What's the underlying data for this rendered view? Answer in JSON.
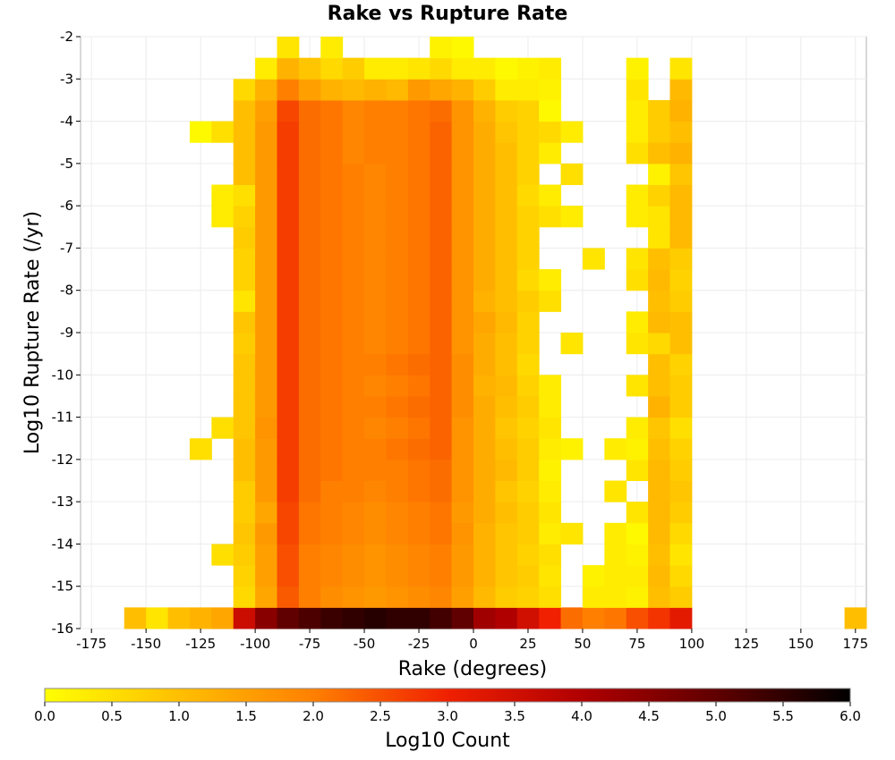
{
  "chart_data": {
    "type": "heatmap",
    "title": "Rake vs Rupture Rate",
    "xlabel": "Rake (degrees)",
    "ylabel": "Log10 Rupture Rate (/yr)",
    "xlim": [
      -180,
      180
    ],
    "ylim": [
      -16,
      -2
    ],
    "x_ticks": [
      -175,
      -150,
      -125,
      -100,
      -75,
      -50,
      -25,
      0,
      25,
      50,
      75,
      100,
      125,
      150,
      175
    ],
    "y_ticks": [
      -2,
      -3,
      -4,
      -5,
      -6,
      -7,
      -8,
      -9,
      -10,
      -11,
      -12,
      -13,
      -14,
      -15,
      -16
    ],
    "grid": true,
    "colorbar": {
      "label": "Log10 Count",
      "min": 0.0,
      "max": 6.0,
      "ticks": [
        "0.0",
        "0.5",
        "1.0",
        "1.5",
        "2.0",
        "2.5",
        "3.0",
        "3.5",
        "4.0",
        "4.5",
        "5.0",
        "5.5",
        "6.0"
      ],
      "colormap": [
        "#ffff00",
        "#ffbf00",
        "#ff8000",
        "#f02000",
        "#b00000",
        "#600000",
        "#000000"
      ]
    },
    "bin_width_x": 10,
    "bin_height_y": 0.5,
    "cells_description": "Each row lists bin-center rake values and Log10 Count values for that bin; rows are keyed by lower edge of rate bin.",
    "rows": [
      {
        "y": -16.0,
        "x": [
          -155,
          -145,
          -135,
          -125,
          -115,
          -105,
          -95,
          -85,
          -75,
          -65,
          -55,
          -45,
          -35,
          -25,
          -15,
          -5,
          5,
          15,
          25,
          35,
          45,
          55,
          65,
          75,
          85,
          95,
          175
        ],
        "v": [
          1.0,
          0.4,
          1.0,
          1.2,
          1.4,
          3.6,
          4.5,
          5.0,
          5.2,
          5.4,
          5.5,
          5.6,
          5.5,
          5.5,
          5.3,
          5.0,
          4.2,
          4.0,
          3.5,
          3.0,
          2.2,
          2.0,
          2.1,
          2.5,
          2.8,
          3.2,
          1.0
        ]
      },
      {
        "y": -15.5,
        "x": [
          -105,
          -95,
          -85,
          -75,
          -65,
          -55,
          -45,
          -35,
          -25,
          -15,
          -5,
          5,
          15,
          25,
          35,
          55,
          65,
          75,
          85,
          95
        ],
        "v": [
          0.6,
          1.4,
          2.4,
          2.0,
          1.8,
          1.7,
          1.6,
          1.7,
          1.8,
          1.9,
          1.5,
          1.1,
          0.8,
          0.7,
          0.5,
          0.3,
          0.3,
          0.2,
          1.0,
          0.8
        ]
      },
      {
        "y": -15.0,
        "x": [
          -105,
          -95,
          -85,
          -75,
          -65,
          -55,
          -45,
          -35,
          -25,
          -15,
          -5,
          5,
          15,
          25,
          35,
          55,
          65,
          75,
          85,
          95
        ],
        "v": [
          0.7,
          1.5,
          2.5,
          2.0,
          1.9,
          1.8,
          1.7,
          1.8,
          1.9,
          2.0,
          1.6,
          1.2,
          0.9,
          0.8,
          0.4,
          0.2,
          0.3,
          0.3,
          1.1,
          0.6
        ]
      },
      {
        "y": -14.5,
        "x": [
          -115,
          -105,
          -95,
          -85,
          -75,
          -65,
          -55,
          -45,
          -35,
          -25,
          -15,
          -5,
          5,
          15,
          25,
          35,
          65,
          75,
          85,
          95
        ],
        "v": [
          0.5,
          0.8,
          1.5,
          2.5,
          2.0,
          1.9,
          1.8,
          1.7,
          1.8,
          1.9,
          2.0,
          1.6,
          1.2,
          0.9,
          0.7,
          0.5,
          0.3,
          0.2,
          1.0,
          0.4
        ]
      },
      {
        "y": -14.0,
        "x": [
          -105,
          -95,
          -85,
          -75,
          -65,
          -55,
          -45,
          -35,
          -25,
          -15,
          -5,
          5,
          15,
          25,
          35,
          45,
          65,
          75,
          85,
          95
        ],
        "v": [
          0.9,
          1.6,
          2.6,
          2.1,
          2.0,
          1.9,
          1.8,
          1.9,
          2.0,
          2.1,
          1.7,
          1.2,
          0.9,
          0.8,
          0.3,
          0.4,
          0.3,
          0.1,
          1.1,
          0.6
        ]
      },
      {
        "y": -13.5,
        "x": [
          -105,
          -95,
          -85,
          -75,
          -65,
          -55,
          -45,
          -35,
          -25,
          -15,
          -5,
          5,
          15,
          25,
          35,
          75,
          85,
          95
        ],
        "v": [
          0.8,
          1.4,
          2.6,
          2.1,
          2.0,
          1.9,
          1.8,
          1.9,
          2.0,
          2.1,
          1.6,
          1.3,
          1.0,
          0.8,
          0.4,
          0.4,
          1.1,
          0.8
        ]
      },
      {
        "y": -13.0,
        "x": [
          -105,
          -95,
          -85,
          -75,
          -65,
          -55,
          -45,
          -35,
          -25,
          -15,
          -5,
          5,
          15,
          25,
          35,
          65,
          85,
          95
        ],
        "v": [
          0.8,
          1.6,
          2.7,
          2.2,
          2.0,
          2.0,
          1.9,
          2.0,
          2.1,
          2.2,
          1.7,
          1.3,
          0.9,
          0.7,
          0.3,
          0.4,
          1.1,
          0.9
        ]
      },
      {
        "y": -12.5,
        "x": [
          -105,
          -95,
          -85,
          -75,
          -65,
          -55,
          -45,
          -35,
          -25,
          -15,
          -5,
          5,
          15,
          25,
          35,
          75,
          85,
          95
        ],
        "v": [
          1.0,
          1.6,
          2.7,
          2.2,
          2.1,
          2.0,
          2.0,
          2.0,
          2.1,
          2.2,
          1.7,
          1.3,
          1.1,
          0.8,
          0.2,
          0.4,
          1.1,
          0.8
        ]
      },
      {
        "y": -12.0,
        "x": [
          -125,
          -105,
          -95,
          -85,
          -75,
          -65,
          -55,
          -45,
          -35,
          -25,
          -15,
          -5,
          5,
          15,
          25,
          35,
          45,
          65,
          75,
          85,
          95
        ],
        "v": [
          0.5,
          1.0,
          1.6,
          2.7,
          2.2,
          2.1,
          2.0,
          2.0,
          2.1,
          2.2,
          2.3,
          1.7,
          1.3,
          1.0,
          0.8,
          0.3,
          0.2,
          0.3,
          0.2,
          1.0,
          0.7
        ]
      },
      {
        "y": -11.5,
        "x": [
          -115,
          -105,
          -95,
          -85,
          -75,
          -65,
          -55,
          -45,
          -35,
          -25,
          -15,
          -5,
          5,
          15,
          25,
          35,
          75,
          85,
          95
        ],
        "v": [
          0.5,
          0.9,
          1.7,
          2.7,
          2.2,
          2.1,
          2.0,
          1.9,
          2.0,
          2.1,
          2.3,
          1.7,
          1.3,
          0.9,
          0.7,
          0.4,
          0.3,
          0.9,
          0.5
        ]
      },
      {
        "y": -11.0,
        "x": [
          -105,
          -95,
          -85,
          -75,
          -65,
          -55,
          -45,
          -35,
          -25,
          -15,
          -5,
          5,
          15,
          25,
          35,
          85,
          95
        ],
        "v": [
          0.9,
          1.6,
          2.7,
          2.2,
          2.1,
          2.0,
          2.0,
          2.1,
          2.2,
          2.3,
          1.8,
          1.3,
          1.0,
          0.8,
          0.3,
          1.2,
          0.8
        ]
      },
      {
        "y": -10.5,
        "x": [
          -105,
          -95,
          -85,
          -75,
          -65,
          -55,
          -45,
          -35,
          -25,
          -15,
          -5,
          5,
          15,
          25,
          35,
          75,
          85,
          95
        ],
        "v": [
          0.9,
          1.6,
          2.7,
          2.2,
          2.1,
          2.0,
          1.9,
          2.0,
          2.1,
          2.3,
          1.8,
          1.2,
          1.1,
          0.7,
          0.3,
          0.4,
          1.0,
          0.8
        ]
      },
      {
        "y": -10.0,
        "x": [
          -105,
          -95,
          -85,
          -75,
          -65,
          -55,
          -45,
          -35,
          -25,
          -15,
          -5,
          5,
          15,
          25,
          85,
          95
        ],
        "v": [
          0.9,
          1.6,
          2.7,
          2.2,
          2.1,
          2.0,
          2.0,
          2.1,
          2.2,
          2.3,
          1.8,
          1.3,
          1.0,
          0.6,
          1.0,
          0.7
        ]
      },
      {
        "y": -9.5,
        "x": [
          -105,
          -95,
          -85,
          -75,
          -65,
          -55,
          -45,
          -35,
          -25,
          -15,
          -5,
          5,
          15,
          25,
          45,
          75,
          85,
          95
        ],
        "v": [
          0.8,
          1.6,
          2.7,
          2.2,
          2.1,
          2.0,
          1.9,
          2.0,
          2.1,
          2.3,
          1.7,
          1.3,
          1.0,
          0.7,
          0.4,
          0.4,
          0.6,
          1.0
        ]
      },
      {
        "y": -9.0,
        "x": [
          -105,
          -95,
          -85,
          -75,
          -65,
          -55,
          -45,
          -35,
          -25,
          -15,
          -5,
          5,
          15,
          25,
          75,
          85,
          95
        ],
        "v": [
          0.9,
          1.6,
          2.7,
          2.2,
          2.1,
          2.0,
          1.9,
          2.0,
          2.1,
          2.3,
          1.7,
          1.4,
          1.1,
          0.7,
          0.3,
          1.1,
          1.0
        ]
      },
      {
        "y": -8.5,
        "x": [
          -105,
          -95,
          -85,
          -75,
          -65,
          -55,
          -45,
          -35,
          -25,
          -15,
          -5,
          5,
          15,
          25,
          35,
          85,
          95
        ],
        "v": [
          0.4,
          1.6,
          2.7,
          2.2,
          2.1,
          2.0,
          1.9,
          2.0,
          2.1,
          2.3,
          1.7,
          1.2,
          1.0,
          0.8,
          0.5,
          1.0,
          0.8
        ]
      },
      {
        "y": -8.0,
        "x": [
          -105,
          -95,
          -85,
          -75,
          -65,
          -55,
          -45,
          -35,
          -25,
          -15,
          -5,
          5,
          15,
          25,
          35,
          75,
          85,
          95
        ],
        "v": [
          0.7,
          1.6,
          2.7,
          2.2,
          2.1,
          2.0,
          1.9,
          2.0,
          2.1,
          2.3,
          1.7,
          1.3,
          1.0,
          0.6,
          0.3,
          0.5,
          1.1,
          0.7
        ]
      },
      {
        "y": -7.5,
        "x": [
          -105,
          -95,
          -85,
          -75,
          -65,
          -55,
          -45,
          -35,
          -25,
          -15,
          -5,
          5,
          15,
          25,
          55,
          75,
          85,
          95
        ],
        "v": [
          0.7,
          1.6,
          2.7,
          2.2,
          2.1,
          2.0,
          1.9,
          2.0,
          2.1,
          2.3,
          1.7,
          1.3,
          1.0,
          0.7,
          0.4,
          0.4,
          1.0,
          0.8
        ]
      },
      {
        "y": -7.0,
        "x": [
          -105,
          -95,
          -85,
          -75,
          -65,
          -55,
          -45,
          -35,
          -25,
          -15,
          -5,
          5,
          15,
          25,
          85,
          95
        ],
        "v": [
          0.8,
          1.6,
          2.7,
          2.2,
          2.1,
          2.0,
          1.9,
          2.0,
          2.1,
          2.3,
          1.7,
          1.3,
          1.0,
          0.7,
          0.4,
          1.1
        ]
      },
      {
        "y": -6.5,
        "x": [
          -115,
          -105,
          -95,
          -85,
          -75,
          -65,
          -55,
          -45,
          -35,
          -25,
          -15,
          -5,
          5,
          15,
          25,
          35,
          45,
          75,
          85,
          95
        ],
        "v": [
          0.3,
          0.7,
          1.6,
          2.7,
          2.2,
          2.1,
          2.0,
          1.9,
          2.0,
          2.1,
          2.3,
          1.7,
          1.3,
          1.0,
          0.7,
          0.5,
          0.3,
          0.3,
          0.4,
          1.1
        ]
      },
      {
        "y": -6.0,
        "x": [
          -115,
          -105,
          -95,
          -85,
          -75,
          -65,
          -55,
          -45,
          -35,
          -25,
          -15,
          -5,
          5,
          15,
          25,
          35,
          75,
          85,
          95
        ],
        "v": [
          0.3,
          0.5,
          1.6,
          2.7,
          2.2,
          2.1,
          2.0,
          1.9,
          2.0,
          2.1,
          2.3,
          1.7,
          1.3,
          1.0,
          0.6,
          0.3,
          0.3,
          0.7,
          1.1
        ]
      },
      {
        "y": -5.5,
        "x": [
          -105,
          -95,
          -85,
          -75,
          -65,
          -55,
          -45,
          -35,
          -25,
          -15,
          -5,
          5,
          15,
          25,
          45,
          85,
          95
        ],
        "v": [
          1.0,
          1.6,
          2.7,
          2.2,
          2.1,
          2.0,
          1.9,
          2.0,
          2.1,
          2.3,
          1.7,
          1.3,
          1.0,
          0.7,
          0.5,
          0.2,
          0.9
        ]
      },
      {
        "y": -5.0,
        "x": [
          -105,
          -95,
          -85,
          -75,
          -65,
          -55,
          -45,
          -35,
          -25,
          -15,
          -5,
          5,
          15,
          25,
          35,
          75,
          85,
          95
        ],
        "v": [
          1.0,
          1.6,
          2.7,
          2.2,
          2.1,
          1.9,
          2.0,
          2.0,
          2.1,
          2.3,
          1.7,
          1.3,
          1.0,
          0.7,
          0.3,
          0.5,
          1.0,
          1.2
        ]
      },
      {
        "y": -4.5,
        "x": [
          -125,
          -115,
          -105,
          -95,
          -85,
          -75,
          -65,
          -55,
          -45,
          -35,
          -25,
          -15,
          -5,
          5,
          15,
          25,
          35,
          45,
          75,
          85,
          95
        ],
        "v": [
          0.1,
          0.5,
          1.0,
          1.6,
          2.7,
          2.2,
          2.1,
          1.9,
          2.0,
          2.0,
          2.1,
          2.3,
          1.7,
          1.3,
          0.9,
          0.7,
          0.6,
          0.3,
          0.3,
          0.8,
          1.0
        ]
      },
      {
        "y": -4.0,
        "x": [
          -105,
          -95,
          -85,
          -75,
          -65,
          -55,
          -45,
          -35,
          -25,
          -15,
          -5,
          5,
          15,
          25,
          35,
          75,
          85,
          95
        ],
        "v": [
          1.0,
          1.5,
          2.6,
          2.2,
          2.1,
          1.9,
          2.0,
          2.0,
          2.1,
          2.2,
          1.7,
          1.2,
          0.8,
          0.7,
          0.1,
          0.3,
          0.8,
          1.2
        ]
      },
      {
        "y": -3.5,
        "x": [
          -105,
          -95,
          -85,
          -75,
          -65,
          -55,
          -45,
          -35,
          -25,
          -15,
          -5,
          5,
          15,
          25,
          35,
          75,
          95
        ],
        "v": [
          0.6,
          1.2,
          2.0,
          1.5,
          1.2,
          1.1,
          1.2,
          1.1,
          1.6,
          1.4,
          1.2,
          0.8,
          0.3,
          0.3,
          0.2,
          0.4,
          1.1
        ]
      },
      {
        "y": -3.0,
        "x": [
          -95,
          -85,
          -75,
          -65,
          -55,
          -45,
          -35,
          -25,
          -15,
          -5,
          5,
          15,
          25,
          35,
          75,
          95
        ],
        "v": [
          0.3,
          1.2,
          0.9,
          0.6,
          0.8,
          0.3,
          0.3,
          0.4,
          0.6,
          0.3,
          0.3,
          0.1,
          0.2,
          0.3,
          0.2,
          0.4
        ]
      },
      {
        "y": -2.5,
        "x": [
          -85,
          -65,
          -15,
          -5
        ],
        "v": [
          0.4,
          0.3,
          0.2,
          0.1
        ]
      }
    ]
  }
}
